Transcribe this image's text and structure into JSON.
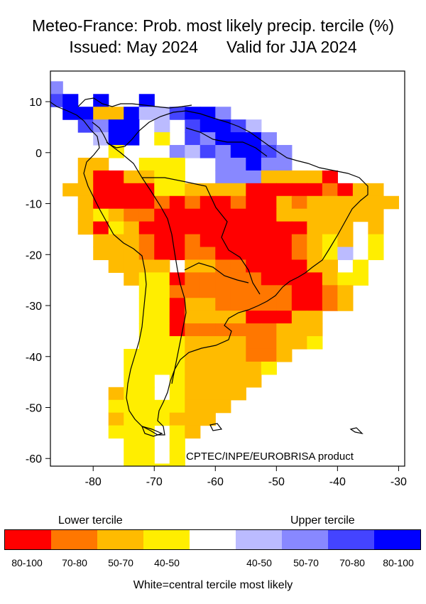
{
  "title_line1": "Meteo-France: Prob. most likely precip. tercile (%)",
  "issued": "Issued: May 2024",
  "valid": "Valid for JJA 2024",
  "credit": "CPTEC/INPE/EUROBRISA product",
  "axes": {
    "lon_ticks": [
      "-80",
      "-70",
      "-60",
      "-50",
      "-40",
      "-30"
    ],
    "lat_ticks": [
      "10",
      "0",
      "-10",
      "-20",
      "-30",
      "-40",
      "-50",
      "-60"
    ],
    "lon_range": [
      -87,
      -29
    ],
    "lat_range": [
      -61.5,
      16
    ]
  },
  "legend": {
    "lower_label": "Lower tercile",
    "upper_label": "Upper tercile",
    "lower_ranges": [
      "80-100",
      "70-80",
      "50-70",
      "40-50"
    ],
    "upper_ranges": [
      "40-50",
      "50-70",
      "70-80",
      "80-100"
    ],
    "note": "White=central tercile most likely",
    "colors": [
      "#ff0000",
      "#ff7700",
      "#ffbb00",
      "#ffee00",
      "#ffffff",
      "#bbbbff",
      "#8888ff",
      "#4444ff",
      "#0000ff"
    ]
  },
  "category_codes": {
    "L4": "#ff0000",
    "L3": "#ff7700",
    "L2": "#ffbb00",
    "L1": "#ffee00",
    "W": "#ffffff",
    "U1": "#bbbbff",
    "U2": "#8888ff",
    "U3": "#4444ff",
    "U4": "#0000ff"
  },
  "grid_spec": {
    "lon0": -87.5,
    "lat_top": 14.0,
    "cell_deg": 2.5
  },
  "grid_rows": [
    "U2 . . . . . . . . . . . . . . . . . . . . . . .",
    "U3 U4 . U4 . . U4 . . . . . . . . . . . . . . . .",
    ". U4 U4 L2 L2 U4 U1 U1 U3 U4 U4 U2 . . . . . . . . . . .",
    ". . U3 U2 U4 U4 W U1 W U3 U4 U4 U3 U1 . . . . . . . . .",
    ". . . U1 U4 U4 . L1 . U3 U2 U4 U4 U4 U2 . . . . . . . .",
    ". . . . L1 . . . U2 U1 U3 U2 U4 U4 U3 U2 . . . . . . .",
    ". . L2 L2 . . L1 L1 L1 W W U2 U2 U4 U2 U2 . . . . . . .",
    ". . L2 L4 L4 L2 L2 L1 L1 W W U2 U2 U2 L2 L2 L2 L2 L4 . . . .",
    ". L2 L2 L4 L4 L4 L4 L1 L1 L2 L2 L2 L2 L4 L4 L4 L4 L4 L3 L4 L2 L2 .",
    ". . L2 L4 L4 L4 L4 L3 L4 L3 L4 L4 L3 L4 L4 L2 L3 L2 L2 L2 L2 L2 L2",
    ". . L2 L1 L2 L3 L3 L4 L4 L4 L4 L4 L4 L4 L4 L2 L2 L2 L2 L2 L2 L2 .",
    ". . L2 L4 L1 L2 L4 L4 L4 L4 L4 L4 L4 L4 L4 L4 L4 L2 L2 L2 W L2 .",
    ". . . L2 L2 L2 L3 L4 L4 L3 L4 L4 L4 L4 L4 L4 L3 L2 L1 L2 W L1 .",
    ". . . L2 L2 L2 L3 L4 L4 L3 L3 L4 L4 L4 L4 L4 L3 L2 L1 U1 W L1 .",
    ". . . . L2 L2 L2 L2 W L2 L2 L3 L3 L4 L4 L4 L4 L2 L2 W L1 . .",
    ". . . . . L2 L1 L1 L4 L3 L3 L3 L3 L3 L4 L4 L4 L4 L2 L1 L1 . .",
    ". . . . . . L1 L1 L3 L3 L3 L3 L3 L3 L3 L3 L4 L4 L3 L2 . . .",
    ". . . . . . L1 L1 L4 L2 L2 L3 L3 L3 L3 L3 L4 L4 L3 L2 . . .",
    ". . . . . . L1 L1 L4 L2 L2 L2 L2 L4 L4 L4 L2 L2 . . . . .",
    ". . . . . . L1 L1 L4 L3 L3 L3 L3 L3 L3 L2 L2 L2 . . . . .",
    ". . . . . . L1 L1 L1 L2 L2 L2 L2 L3 L3 L2 L2 L1 . . . . .",
    ". . . . . L1 L1 L1 L1 L2 L2 L2 L2 L3 L3 L2 . . . . . . .",
    ". . . . . L1 L1 L1 L1 L2 L2 L2 L2 L2 L1 . . . . . . . .",
    ". . . . . L1 L1 W L1 L2 L2 L2 L2 L2 . . . . . . . . .",
    ". . . . L2 L1 L1 W L1 L2 L2 L2 L2 . . . . . . . . . .",
    ". . . . L1 L1 L1 L1 L1 L2 L2 L2 . . . . . . . . . . .",
    ". . . . L2 L1 L1 L1 L2 L2 L2 . . . . . . . . . . . .",
    ". . . . L1 L1 L1 W L1 L2 . . . . . . . . . . . . .",
    ". . . . W L1 L1 W L1 . . . . . . . . . . . . . .",
    ". . . . . L1 L1 W L1 . . . . . . . . . . . . . .",
    ". . . . . L1 L1 L1 L1 . . . . . . . . . . . . . .",
    ". . . . . . W W W . . . . . . . . . . . . . . .",
    ". . . . . . L1 L1 . . . . . . . . . . . . . . .",
    ". . . . . . L1 L1 L1 L1 . . . . . . . . . . . . . ."
  ]
}
